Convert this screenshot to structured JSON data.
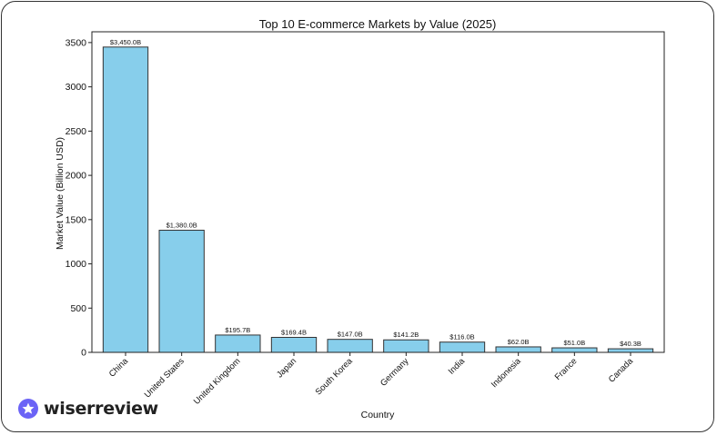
{
  "brand": {
    "name": "wiserreview",
    "logo_icon": "star-badge-icon",
    "logo_color": "#6b63f6"
  },
  "chart_data": {
    "type": "bar",
    "title": "Top 10 E-commerce Markets by Value (2025)",
    "xlabel": "Country",
    "ylabel": "Market Value (Billion USD)",
    "categories": [
      "China",
      "United States",
      "United Kingdom",
      "Japan",
      "South Korea",
      "Germany",
      "India",
      "Indonesia",
      "France",
      "Canada"
    ],
    "values": [
      3450.0,
      1380.0,
      195.7,
      169.4,
      147.0,
      141.2,
      116.0,
      62.0,
      51.0,
      40.3
    ],
    "data_labels": [
      "$3,450.0B",
      "$1,380.0B",
      "$195.7B",
      "$169.4B",
      "$147.0B",
      "$141.2B",
      "$116.0B",
      "$62.0B",
      "$51.0B",
      "$40.3B"
    ],
    "ylim": [
      0,
      3622.5
    ],
    "yticks": [
      0,
      500,
      1000,
      1500,
      2000,
      2500,
      3000,
      3500
    ],
    "bar_color": "#87ceeb",
    "edge_color": "#333333",
    "grid": false,
    "legend": "none"
  }
}
